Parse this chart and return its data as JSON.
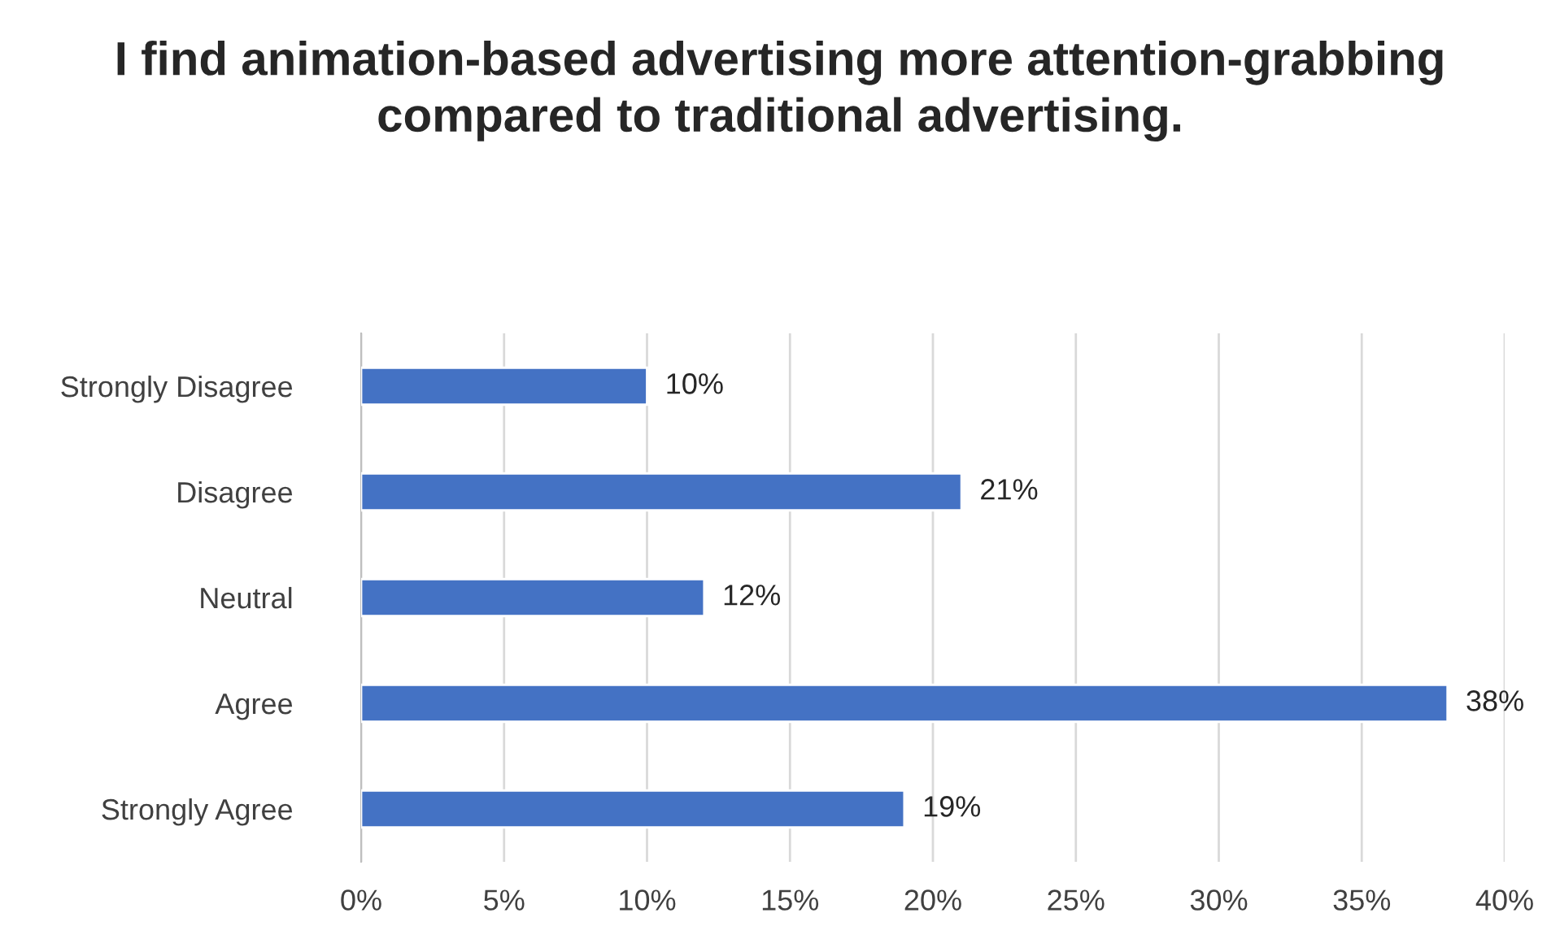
{
  "chart_data": {
    "type": "bar",
    "orientation": "horizontal",
    "title": "I find animation-based advertising more attention-grabbing compared to traditional advertising.",
    "categories": [
      "Strongly Disagree",
      "Disagree",
      "Neutral",
      "Agree",
      "Strongly Agree"
    ],
    "values": [
      10,
      21,
      12,
      38,
      19
    ],
    "value_labels": [
      "10%",
      "21%",
      "12%",
      "38%",
      "19%"
    ],
    "color": "#4472c4",
    "xlim": [
      0,
      40
    ],
    "xticks": [
      {
        "value": 0,
        "label": "0%"
      },
      {
        "value": 5,
        "label": "5%"
      },
      {
        "value": 10,
        "label": "10%"
      },
      {
        "value": 15,
        "label": "15%"
      },
      {
        "value": 20,
        "label": "20%"
      },
      {
        "value": 25,
        "label": "25%"
      },
      {
        "value": 30,
        "label": "30%"
      },
      {
        "value": 35,
        "label": "35%"
      },
      {
        "value": 40,
        "label": "40%"
      }
    ],
    "grid": "x"
  }
}
